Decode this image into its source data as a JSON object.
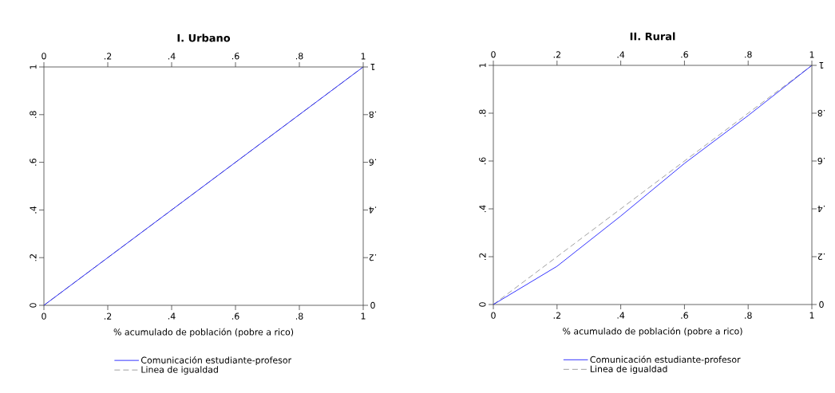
{
  "chart_data": [
    {
      "type": "line",
      "title": "**I. Urbano**",
      "xlabel": "% acumulado de población (pobre a rico)",
      "legend": "bottom",
      "xlim": [
        0,
        1
      ],
      "ylim": [
        0,
        1
      ],
      "x2lim": [
        0,
        1
      ],
      "y2lim": [
        0,
        1
      ],
      "xticks": [
        0,
        {
          "value": 0.2,
          "label": ".2"
        },
        {
          "value": 0.4,
          "label": ".4"
        },
        {
          "value": 0.6,
          "label": ".6"
        },
        {
          "value": 0.8,
          "label": ".8"
        },
        1
      ],
      "yticks": [
        0,
        {
          "value": 0.2,
          "label": ".2"
        },
        {
          "value": 0.4,
          "label": ".4"
        },
        {
          "value": 0.6,
          "label": ".6"
        },
        {
          "value": 0.8,
          "label": ".8"
        },
        1
      ],
      "x2ticks": [
        0,
        {
          "value": 0.2,
          "label": ".2"
        },
        {
          "value": 0.4,
          "label": ".4"
        },
        {
          "value": 0.6,
          "label": ".6"
        },
        {
          "value": 0.8,
          "label": ".8"
        },
        1
      ],
      "y2ticks": [
        0,
        {
          "value": 0.2,
          "label": ".2"
        },
        {
          "value": 0.4,
          "label": ".4"
        },
        {
          "value": 0.6,
          "label": ".6"
        },
        {
          "value": 0.8,
          "label": ".8"
        },
        1
      ],
      "series": [
        {
          "name": "Comunicación estudiante-profesor",
          "color": "#0000ff",
          "line_style": "solid",
          "x": [
            0,
            0.2,
            0.4,
            0.6,
            0.8,
            1
          ],
          "values": [
            0,
            0.2,
            0.4,
            0.6,
            0.8,
            1
          ]
        },
        {
          "name": "Linea de igualdad",
          "color": "#888888",
          "line_style": "dashed",
          "x": [
            0,
            1
          ],
          "values": [
            0,
            1
          ]
        }
      ]
    },
    {
      "type": "line",
      "title": "**II. Rural**",
      "xlabel": "% acumulado de población (pobre a rico)",
      "legend": "bottom",
      "xlim": [
        0,
        1
      ],
      "ylim": [
        0,
        1
      ],
      "x2lim": [
        0,
        1
      ],
      "y2lim": [
        0,
        1
      ],
      "xticks": [
        0,
        {
          "value": 0.2,
          "label": ".2"
        },
        {
          "value": 0.4,
          "label": ".4"
        },
        {
          "value": 0.6,
          "label": ".6"
        },
        {
          "value": 0.8,
          "label": ".8"
        },
        1
      ],
      "yticks": [
        0,
        {
          "value": 0.2,
          "label": ".2"
        },
        {
          "value": 0.4,
          "label": ".4"
        },
        {
          "value": 0.6,
          "label": ".6"
        },
        {
          "value": 0.8,
          "label": ".8"
        },
        1
      ],
      "x2ticks": [
        0,
        {
          "value": 0.2,
          "label": ".2"
        },
        {
          "value": 0.4,
          "label": ".4"
        },
        {
          "value": 0.6,
          "label": ".6"
        },
        {
          "value": 0.8,
          "label": ".8"
        },
        1
      ],
      "y2ticks": [
        0,
        {
          "value": 0.2,
          "label": ".2"
        },
        {
          "value": 0.4,
          "label": ".4"
        },
        {
          "value": 0.6,
          "label": ".6"
        },
        {
          "value": 0.8,
          "label": ".8"
        },
        1
      ],
      "series": [
        {
          "name": "Comunicación estudiante-profesor",
          "color": "#0000ff",
          "line_style": "solid",
          "x": [
            0,
            0.2,
            0.4,
            0.6,
            0.8,
            1
          ],
          "values": [
            0,
            0.16,
            0.37,
            0.59,
            0.79,
            1
          ]
        },
        {
          "name": "Linea de igualdad",
          "color": "#888888",
          "line_style": "dashed",
          "x": [
            0,
            1
          ],
          "values": [
            0,
            1
          ]
        }
      ]
    }
  ]
}
